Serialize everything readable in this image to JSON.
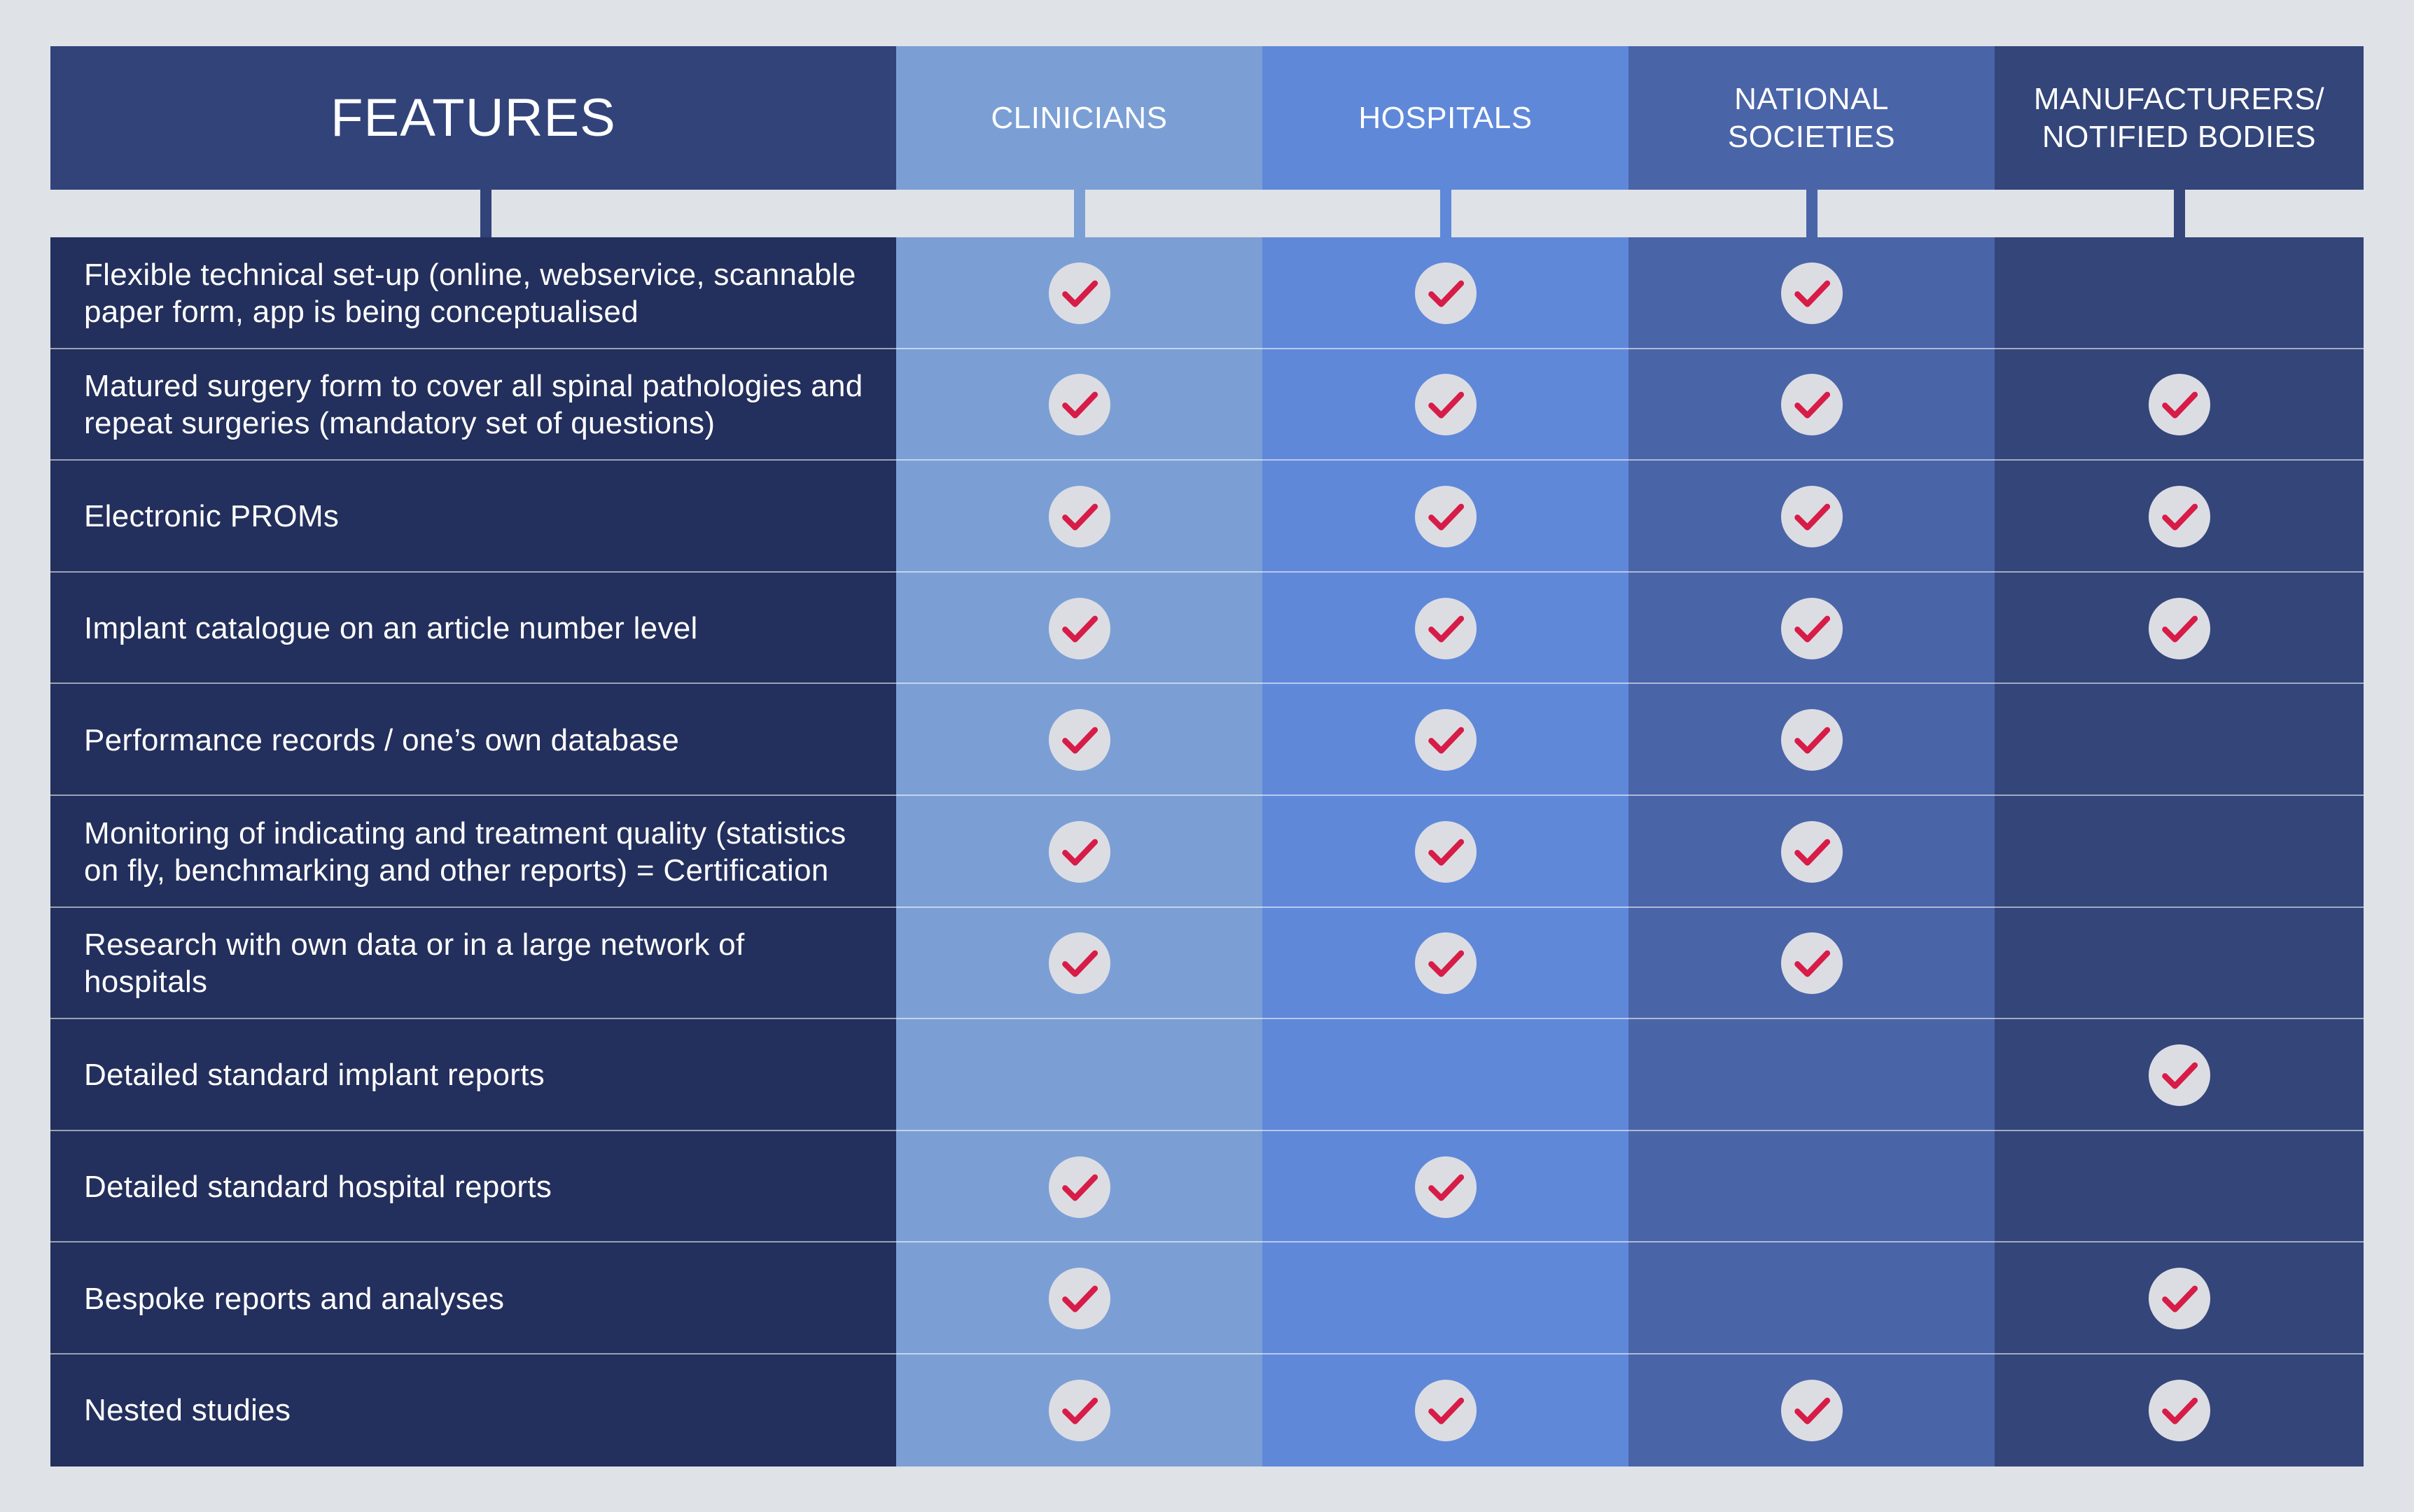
{
  "colors": {
    "page_bg": "#dfe2e7",
    "features_col": "#232f5c",
    "features_header": "#314379",
    "clinicians": "#7b9fd5",
    "hospitals": "#5f88d9",
    "national_societies": "#4a64a8",
    "manufacturers": "#334579",
    "check_circle": "#dcdde3",
    "check_mark": "#d71c47"
  },
  "header": {
    "features": "FEATURES",
    "columns": [
      "CLINICIANS",
      "HOSPITALS",
      "NATIONAL\nSOCIETIES",
      "MANUFACTURERS/\nNOTIFIED BODIES"
    ]
  },
  "icons": {
    "check": "check-circle-icon"
  },
  "rows": [
    {
      "feature": "Flexible technical set-up (online, webservice, scannable paper form, app is being conceptualised",
      "checks": [
        true,
        true,
        true,
        false
      ]
    },
    {
      "feature": "Matured surgery form to cover all spinal pathologies and repeat surgeries (mandatory set of questions)",
      "checks": [
        true,
        true,
        true,
        true
      ]
    },
    {
      "feature": "Electronic PROMs",
      "checks": [
        true,
        true,
        true,
        true
      ]
    },
    {
      "feature": "Implant catalogue on an article number level",
      "checks": [
        true,
        true,
        true,
        true
      ]
    },
    {
      "feature": "Performance records / one’s own database",
      "checks": [
        true,
        true,
        true,
        false
      ]
    },
    {
      "feature": "Monitoring of indicating and treatment quality (statistics on fly, benchmarking and other reports) = Certification",
      "checks": [
        true,
        true,
        true,
        false
      ]
    },
    {
      "feature": "Research with own data or in a large network of hospitals",
      "checks": [
        true,
        true,
        true,
        false
      ]
    },
    {
      "feature": "Detailed standard implant reports",
      "checks": [
        false,
        false,
        false,
        true
      ]
    },
    {
      "feature": "Detailed standard hospital reports",
      "checks": [
        true,
        true,
        false,
        false
      ]
    },
    {
      "feature": "Bespoke reports and analyses",
      "checks": [
        true,
        false,
        false,
        true
      ]
    },
    {
      "feature": "Nested studies",
      "checks": [
        true,
        true,
        true,
        true
      ]
    }
  ]
}
